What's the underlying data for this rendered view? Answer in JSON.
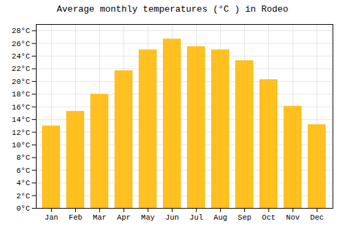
{
  "chart_data": {
    "type": "bar",
    "title": "Average monthly temperatures (°C ) in Rodeo",
    "categories": [
      "Jan",
      "Feb",
      "Mar",
      "Apr",
      "May",
      "Jun",
      "Jul",
      "Aug",
      "Sep",
      "Oct",
      "Nov",
      "Dec"
    ],
    "values": [
      13,
      15.3,
      18,
      21.7,
      25,
      26.7,
      25.5,
      25,
      23.3,
      20.3,
      16.1,
      13.2
    ],
    "color": "#FFC020",
    "ylim": [
      0,
      29
    ],
    "yticks": [
      {
        "value": 0,
        "label": "0°C"
      },
      {
        "value": 2,
        "label": "2°C"
      },
      {
        "value": 4,
        "label": "4°C"
      },
      {
        "value": 6,
        "label": "6°C"
      },
      {
        "value": 8,
        "label": "8°C"
      },
      {
        "value": 10,
        "label": "10°C"
      },
      {
        "value": 12,
        "label": "12°C"
      },
      {
        "value": 14,
        "label": "14°C"
      },
      {
        "value": 16,
        "label": "16°C"
      },
      {
        "value": 18,
        "label": "18°C"
      },
      {
        "value": 20,
        "label": "20°C"
      },
      {
        "value": 22,
        "label": "22°C"
      },
      {
        "value": 24,
        "label": "24°C"
      },
      {
        "value": 26,
        "label": "26°C"
      },
      {
        "value": 28,
        "label": "28°C"
      }
    ],
    "grid": true
  }
}
